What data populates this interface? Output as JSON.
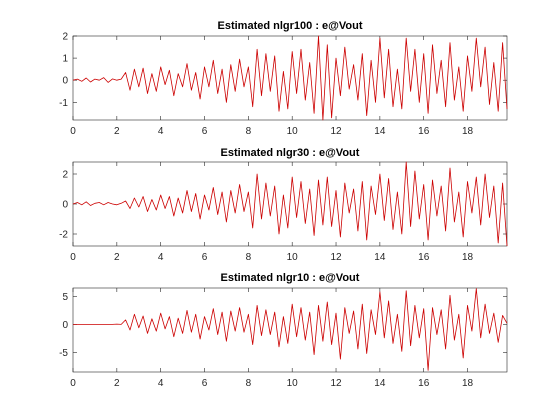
{
  "chart_data": [
    {
      "type": "line",
      "title": "Estimated nlgr100 : e@Vout",
      "xlim": [
        0,
        19.8
      ],
      "ylim": [
        -1.8,
        2
      ],
      "xticks": [
        0,
        2,
        4,
        6,
        8,
        10,
        12,
        14,
        16,
        18
      ],
      "yticks": [
        -1,
        0,
        1,
        2
      ],
      "series": [
        {
          "color": "#cc0000",
          "x": [
            0,
            0.2,
            0.4,
            0.6,
            0.8,
            1.0,
            1.2,
            1.4,
            1.6,
            1.8,
            2.0,
            2.2,
            2.4,
            2.6,
            2.8,
            3.0,
            3.2,
            3.4,
            3.6,
            3.8,
            4.0,
            4.2,
            4.4,
            4.6,
            4.8,
            5.0,
            5.2,
            5.4,
            5.6,
            5.8,
            6.0,
            6.2,
            6.4,
            6.6,
            6.8,
            7.0,
            7.2,
            7.4,
            7.6,
            7.8,
            8.0,
            8.2,
            8.4,
            8.6,
            8.8,
            9.0,
            9.2,
            9.4,
            9.6,
            9.8,
            10.0,
            10.2,
            10.4,
            10.6,
            10.8,
            11.0,
            11.2,
            11.4,
            11.6,
            11.8,
            12.0,
            12.2,
            12.4,
            12.6,
            12.8,
            13.0,
            13.2,
            13.4,
            13.6,
            13.8,
            14.0,
            14.2,
            14.4,
            14.6,
            14.8,
            15.0,
            15.2,
            15.4,
            15.6,
            15.8,
            16.0,
            16.2,
            16.4,
            16.6,
            16.8,
            17.0,
            17.2,
            17.4,
            17.6,
            17.8,
            18.0,
            18.2,
            18.4,
            18.6,
            18.8,
            19.0,
            19.2,
            19.4,
            19.6,
            19.8
          ],
          "y": [
            0.0,
            0.05,
            -0.05,
            0.1,
            -0.08,
            0.05,
            0.0,
            0.12,
            -0.1,
            0.06,
            0.0,
            0.05,
            0.35,
            -0.45,
            0.5,
            -0.3,
            0.55,
            -0.6,
            0.3,
            -0.5,
            0.6,
            -0.2,
            0.45,
            -0.7,
            0.3,
            -0.3,
            0.75,
            -0.45,
            0.35,
            -0.85,
            0.6,
            -0.3,
            0.9,
            -0.6,
            0.5,
            -1.0,
            0.7,
            -0.5,
            0.95,
            -0.3,
            0.6,
            -1.2,
            1.4,
            -0.7,
            1.2,
            -0.5,
            1.1,
            -1.4,
            0.4,
            -1.3,
            1.3,
            -0.6,
            1.4,
            -0.9,
            0.8,
            -1.5,
            2.0,
            -1.8,
            1.6,
            -1.7,
            1.0,
            -0.7,
            1.5,
            -0.4,
            0.7,
            -0.9,
            1.2,
            -1.6,
            0.9,
            -1.0,
            1.9,
            -0.8,
            1.4,
            -1.2,
            0.5,
            -1.3,
            1.9,
            -0.5,
            1.4,
            -1.0,
            1.2,
            -1.5,
            1.6,
            -0.6,
            0.9,
            -1.2,
            1.7,
            -0.9,
            0.6,
            -1.4,
            1.1,
            -0.5,
            1.9,
            -0.3,
            1.5,
            -1.1,
            0.8,
            -1.4,
            1.7,
            -1.3
          ]
        }
      ]
    },
    {
      "type": "line",
      "title": "Estimated nlgr30 : e@Vout",
      "xlim": [
        0,
        19.8
      ],
      "ylim": [
        -2.8,
        2.8
      ],
      "xticks": [
        0,
        2,
        4,
        6,
        8,
        10,
        12,
        14,
        16,
        18
      ],
      "yticks": [
        -2,
        0,
        2
      ],
      "series": [
        {
          "color": "#cc0000",
          "x": [
            0,
            0.2,
            0.4,
            0.6,
            0.8,
            1.0,
            1.2,
            1.4,
            1.6,
            1.8,
            2.0,
            2.2,
            2.4,
            2.6,
            2.8,
            3.0,
            3.2,
            3.4,
            3.6,
            3.8,
            4.0,
            4.2,
            4.4,
            4.6,
            4.8,
            5.0,
            5.2,
            5.4,
            5.6,
            5.8,
            6.0,
            6.2,
            6.4,
            6.6,
            6.8,
            7.0,
            7.2,
            7.4,
            7.6,
            7.8,
            8.0,
            8.2,
            8.4,
            8.6,
            8.8,
            9.0,
            9.2,
            9.4,
            9.6,
            9.8,
            10.0,
            10.2,
            10.4,
            10.6,
            10.8,
            11.0,
            11.2,
            11.4,
            11.6,
            11.8,
            12.0,
            12.2,
            12.4,
            12.6,
            12.8,
            13.0,
            13.2,
            13.4,
            13.6,
            13.8,
            14.0,
            14.2,
            14.4,
            14.6,
            14.8,
            15.0,
            15.2,
            15.4,
            15.6,
            15.8,
            16.0,
            16.2,
            16.4,
            16.6,
            16.8,
            17.0,
            17.2,
            17.4,
            17.6,
            17.8,
            18.0,
            18.2,
            18.4,
            18.6,
            18.8,
            19.0,
            19.2,
            19.4,
            19.6,
            19.8
          ],
          "y": [
            0.0,
            0.1,
            -0.05,
            0.15,
            -0.1,
            0.05,
            0.1,
            -0.05,
            0.1,
            0.0,
            -0.05,
            0.05,
            0.2,
            -0.3,
            0.4,
            -0.2,
            0.5,
            -0.5,
            0.3,
            -0.4,
            0.6,
            -0.3,
            0.5,
            -0.8,
            0.4,
            -0.6,
            0.9,
            -0.5,
            0.7,
            -1.0,
            0.6,
            -0.4,
            1.1,
            -0.7,
            0.8,
            -1.2,
            0.9,
            -0.6,
            1.3,
            -0.5,
            0.8,
            -1.6,
            2.0,
            -1.0,
            1.4,
            -0.8,
            1.2,
            -2.0,
            0.6,
            -1.6,
            1.8,
            -0.9,
            1.5,
            -1.3,
            1.0,
            -2.1,
            1.6,
            -1.4,
            1.8,
            -1.5,
            0.9,
            -2.2,
            1.4,
            -0.6,
            1.0,
            -1.8,
            1.5,
            -2.4,
            1.2,
            -0.7,
            2.0,
            -1.1,
            1.7,
            -1.7,
            0.8,
            -2.0,
            2.8,
            -1.5,
            2.2,
            -1.0,
            1.3,
            -2.4,
            1.6,
            -0.8,
            1.2,
            -1.8,
            2.4,
            -1.2,
            0.8,
            -2.2,
            1.5,
            -0.6,
            1.8,
            -1.4,
            2.0,
            -0.9,
            1.2,
            -2.6,
            1.4,
            -2.8
          ]
        }
      ]
    },
    {
      "type": "line",
      "title": "Estimated nlgr10 : e@Vout",
      "xlim": [
        0,
        19.8
      ],
      "ylim": [
        -8.5,
        6.5
      ],
      "xticks": [
        0,
        2,
        4,
        6,
        8,
        10,
        12,
        14,
        16,
        18
      ],
      "yticks": [
        -5,
        0,
        5
      ],
      "series": [
        {
          "color": "#cc0000",
          "x": [
            0,
            0.2,
            0.4,
            0.6,
            0.8,
            1.0,
            1.2,
            1.4,
            1.6,
            1.8,
            2.0,
            2.2,
            2.4,
            2.6,
            2.8,
            3.0,
            3.2,
            3.4,
            3.6,
            3.8,
            4.0,
            4.2,
            4.4,
            4.6,
            4.8,
            5.0,
            5.2,
            5.4,
            5.6,
            5.8,
            6.0,
            6.2,
            6.4,
            6.6,
            6.8,
            7.0,
            7.2,
            7.4,
            7.6,
            7.8,
            8.0,
            8.2,
            8.4,
            8.6,
            8.8,
            9.0,
            9.2,
            9.4,
            9.6,
            9.8,
            10.0,
            10.2,
            10.4,
            10.6,
            10.8,
            11.0,
            11.2,
            11.4,
            11.6,
            11.8,
            12.0,
            12.2,
            12.4,
            12.6,
            12.8,
            13.0,
            13.2,
            13.4,
            13.6,
            13.8,
            14.0,
            14.2,
            14.4,
            14.6,
            14.8,
            15.0,
            15.2,
            15.4,
            15.6,
            15.8,
            16.0,
            16.2,
            16.4,
            16.6,
            16.8,
            17.0,
            17.2,
            17.4,
            17.6,
            17.8,
            18.0,
            18.2,
            18.4,
            18.6,
            18.8,
            19.0,
            19.2,
            19.4,
            19.6,
            19.8
          ],
          "y": [
            0.0,
            0.0,
            0.0,
            0.0,
            0.0,
            0.0,
            0.0,
            0.0,
            0.0,
            0.0,
            0.05,
            0.0,
            0.8,
            -1.0,
            1.8,
            -0.6,
            1.5,
            -1.6,
            1.0,
            -1.2,
            2.0,
            -0.8,
            1.4,
            -2.2,
            1.1,
            -1.6,
            2.5,
            -1.4,
            1.8,
            -2.6,
            1.4,
            -1.0,
            2.8,
            -1.8,
            2.2,
            -3.0,
            2.4,
            -1.2,
            3.0,
            -1.4,
            1.8,
            -3.6,
            3.4,
            -2.0,
            2.6,
            -1.8,
            2.2,
            -4.0,
            1.4,
            -3.4,
            3.6,
            -2.2,
            3.0,
            -2.8,
            2.2,
            -5.4,
            3.4,
            -3.0,
            4.0,
            -3.6,
            2.0,
            -6.2,
            3.0,
            -1.6,
            2.4,
            -4.4,
            3.6,
            -5.2,
            2.6,
            -1.8,
            5.8,
            -2.4,
            4.2,
            -3.4,
            1.8,
            -4.8,
            6.0,
            -3.8,
            3.4,
            -2.4,
            2.8,
            -8.2,
            3.0,
            -1.8,
            2.6,
            -4.4,
            5.2,
            -2.8,
            1.8,
            -6.0,
            3.4,
            -1.2,
            6.4,
            -2.4,
            3.6,
            -1.6,
            2.0,
            -3.2,
            1.6,
            0.2
          ]
        }
      ]
    }
  ]
}
